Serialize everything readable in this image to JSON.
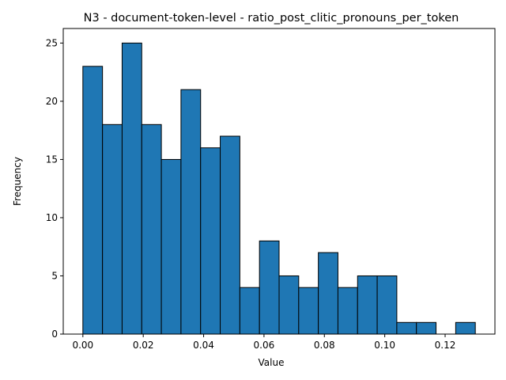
{
  "chart_data": {
    "type": "bar",
    "title": "N3 - document-token-level - ratio_post_clitic_pronouns_per_token",
    "xlabel": "Value",
    "ylabel": "Frequency",
    "bin_start": 0.0,
    "bin_width": 0.0065,
    "values": [
      23,
      18,
      25,
      18,
      15,
      21,
      16,
      17,
      4,
      8,
      5,
      4,
      7,
      4,
      5,
      5,
      1,
      1,
      0,
      1
    ],
    "xlim": [
      -0.0065,
      0.1365
    ],
    "ylim": [
      0,
      26.25
    ],
    "xticks": [
      {
        "value": 0.0,
        "label": "0.00"
      },
      {
        "value": 0.02,
        "label": "0.02"
      },
      {
        "value": 0.04,
        "label": "0.04"
      },
      {
        "value": 0.06,
        "label": "0.06"
      },
      {
        "value": 0.08,
        "label": "0.08"
      },
      {
        "value": 0.1,
        "label": "0.10"
      },
      {
        "value": 0.12,
        "label": "0.12"
      }
    ],
    "yticks": [
      {
        "value": 0,
        "label": "0"
      },
      {
        "value": 5,
        "label": "5"
      },
      {
        "value": 10,
        "label": "10"
      },
      {
        "value": 15,
        "label": "15"
      },
      {
        "value": 20,
        "label": "20"
      },
      {
        "value": 25,
        "label": "25"
      }
    ],
    "bar_color": "#1f77b4",
    "edge_color": "#000000",
    "grid": false,
    "legend": "none"
  }
}
